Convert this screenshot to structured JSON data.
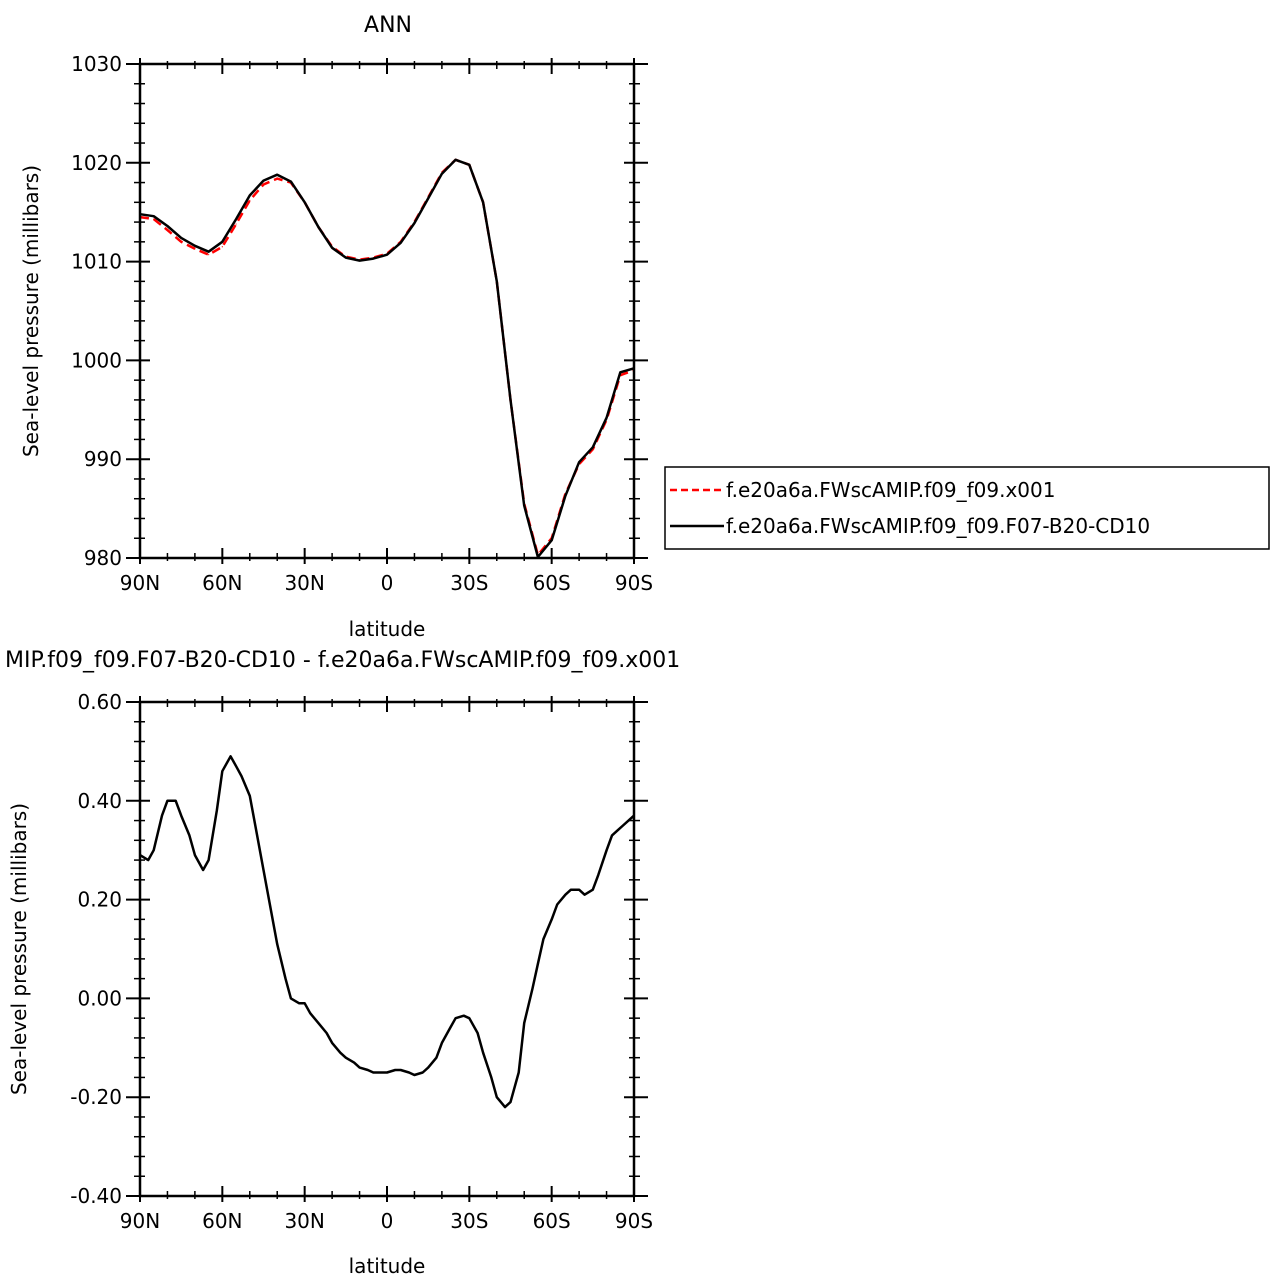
{
  "chart_data": [
    {
      "type": "line",
      "title": "ANN",
      "xlabel": "latitude",
      "ylabel": "Sea-level pressure (millibars)",
      "xlim": [
        90,
        -90
      ],
      "ylim": [
        980,
        1030
      ],
      "x_tick_values": [
        90,
        60,
        30,
        0,
        -30,
        -60,
        -90
      ],
      "x_tick_labels": [
        "90N",
        "60N",
        "30N",
        "0",
        "30S",
        "60S",
        "90S"
      ],
      "y_tick_values": [
        980,
        990,
        1000,
        1010,
        1020,
        1030
      ],
      "y_tick_labels": [
        "980",
        "990",
        "1000",
        "1010",
        "1020",
        "1030"
      ],
      "legend_position": "right",
      "series": [
        {
          "name": "f.e20a6a.FWscAMIP.f09_f09.x001",
          "color": "#ff0000",
          "dash": "dashed",
          "x": [
            90,
            85,
            80,
            75,
            70,
            65,
            60,
            55,
            50,
            45,
            40,
            35,
            30,
            25,
            20,
            15,
            10,
            5,
            0,
            -5,
            -10,
            -15,
            -20,
            -25,
            -30,
            -35,
            -40,
            -45,
            -50,
            -55,
            -60,
            -65,
            -70,
            -75,
            -80,
            -85,
            -90
          ],
          "y": [
            1014.5,
            1014.3,
            1013.2,
            1012.0,
            1011.3,
            1010.7,
            1011.5,
            1013.8,
            1016.2,
            1017.8,
            1018.4,
            1018.0,
            1016.0,
            1013.5,
            1011.5,
            1010.5,
            1010.2,
            1010.4,
            1010.8,
            1012.0,
            1014.0,
            1016.5,
            1019.0,
            1020.3,
            1019.8,
            1016.0,
            1008.0,
            996.0,
            985.5,
            980.3,
            982.0,
            986.5,
            989.5,
            991.0,
            994.0,
            998.5,
            999.0
          ]
        },
        {
          "name": "f.e20a6a.FWscAMIP.f09_f09.F07-B20-CD10",
          "color": "#000000",
          "dash": "solid",
          "x": [
            90,
            85,
            80,
            75,
            70,
            65,
            60,
            55,
            50,
            45,
            40,
            35,
            30,
            25,
            20,
            15,
            10,
            5,
            0,
            -5,
            -10,
            -15,
            -20,
            -25,
            -30,
            -35,
            -40,
            -45,
            -50,
            -55,
            -60,
            -65,
            -70,
            -75,
            -80,
            -85,
            -90
          ],
          "y": [
            1014.8,
            1014.6,
            1013.6,
            1012.4,
            1011.6,
            1011.0,
            1012.0,
            1014.3,
            1016.7,
            1018.2,
            1018.8,
            1018.1,
            1016.0,
            1013.5,
            1011.4,
            1010.4,
            1010.1,
            1010.3,
            1010.7,
            1011.9,
            1013.9,
            1016.4,
            1018.9,
            1020.3,
            1019.8,
            1016.0,
            1008.0,
            996.0,
            985.3,
            980.1,
            981.8,
            986.3,
            989.7,
            991.2,
            994.2,
            998.8,
            999.2
          ]
        }
      ]
    },
    {
      "type": "line",
      "title": "MIP.f09_f09.F07-B20-CD10 - f.e20a6a.FWscAMIP.f09_f09.x001",
      "xlabel": "latitude",
      "ylabel": "Sea-level pressure (millibars)",
      "xlim": [
        90,
        -90
      ],
      "ylim": [
        -0.4,
        0.6
      ],
      "x_tick_values": [
        90,
        60,
        30,
        0,
        -30,
        -60,
        -90
      ],
      "x_tick_labels": [
        "90N",
        "60N",
        "30N",
        "0",
        "30S",
        "60S",
        "90S"
      ],
      "y_tick_values": [
        -0.4,
        -0.2,
        0,
        0.2,
        0.4,
        0.6
      ],
      "y_tick_labels": [
        "-0.40",
        "-0.20",
        "0.00",
        "0.20",
        "0.40",
        "0.60"
      ],
      "series": [
        {
          "color": "#000000",
          "dash": "solid",
          "x": [
            90,
            87,
            85,
            82,
            80,
            77,
            75,
            72,
            70,
            67,
            65,
            62,
            60,
            57,
            55,
            53,
            50,
            48,
            45,
            42,
            40,
            37,
            35,
            32,
            30,
            28,
            25,
            22,
            20,
            17,
            15,
            12,
            10,
            7,
            5,
            2,
            0,
            -3,
            -5,
            -8,
            -10,
            -13,
            -15,
            -18,
            -20,
            -23,
            -25,
            -28,
            -30,
            -33,
            -35,
            -38,
            -40,
            -43,
            -45,
            -48,
            -50,
            -53,
            -55,
            -57,
            -60,
            -62,
            -65,
            -67,
            -70,
            -72,
            -75,
            -77,
            -80,
            -82,
            -84,
            -86,
            -88,
            -90
          ],
          "y": [
            0.29,
            0.28,
            0.3,
            0.37,
            0.4,
            0.4,
            0.37,
            0.33,
            0.29,
            0.26,
            0.28,
            0.38,
            0.46,
            0.49,
            0.47,
            0.45,
            0.41,
            0.35,
            0.26,
            0.17,
            0.11,
            0.04,
            0.0,
            -0.01,
            -0.01,
            -0.03,
            -0.05,
            -0.07,
            -0.09,
            -0.11,
            -0.12,
            -0.13,
            -0.14,
            -0.145,
            -0.15,
            -0.15,
            -0.15,
            -0.145,
            -0.145,
            -0.15,
            -0.155,
            -0.15,
            -0.14,
            -0.12,
            -0.09,
            -0.06,
            -0.04,
            -0.035,
            -0.04,
            -0.07,
            -0.11,
            -0.16,
            -0.2,
            -0.22,
            -0.21,
            -0.15,
            -0.05,
            0.02,
            0.07,
            0.12,
            0.16,
            0.19,
            0.21,
            0.22,
            0.22,
            0.21,
            0.22,
            0.25,
            0.3,
            0.33,
            0.34,
            0.35,
            0.36,
            0.37
          ]
        }
      ]
    }
  ]
}
